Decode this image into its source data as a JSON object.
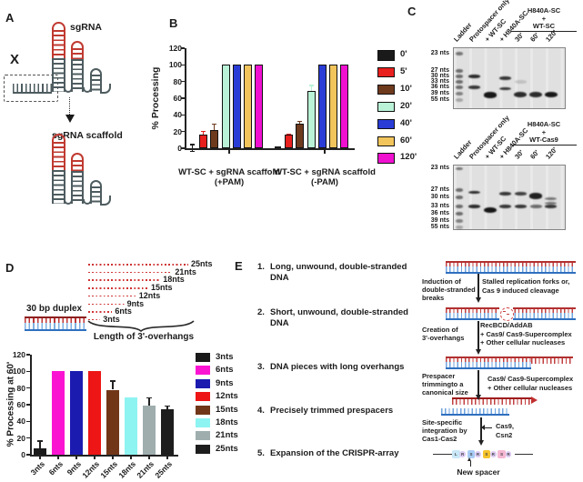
{
  "figure": {
    "panel_labels": {
      "a": "A",
      "b": "B",
      "c": "C",
      "d": "D",
      "e": "E"
    }
  },
  "panel_a": {
    "sgRNA_label": "sgRNA",
    "scaffold_label": "sgRNA scaffold",
    "x_mark": "X"
  },
  "chart_data": [
    {
      "type": "bar",
      "panel": "B",
      "ylabel": "% Processing",
      "ylim": [
        0,
        120
      ],
      "yticks": [
        0,
        20,
        40,
        60,
        80,
        100,
        120
      ],
      "groups": [
        "WT-SC + sgRNA scaffold\n(+PAM)",
        "WT-SC + sgRNA scaffold\n(-PAM)"
      ],
      "series": [
        {
          "name": "0'",
          "color": "#1a1a1a",
          "values": [
            0,
            0
          ],
          "errors": [
            5,
            0
          ]
        },
        {
          "name": "5'",
          "color": "#e8201e",
          "values": [
            16,
            16
          ],
          "errors": [
            5,
            2
          ]
        },
        {
          "name": "10'",
          "color": "#6e3a1e",
          "values": [
            22,
            30
          ],
          "errors": [
            8,
            3
          ]
        },
        {
          "name": "20'",
          "color": "#b9f2d6",
          "values": [
            100,
            69
          ],
          "errors": [
            0,
            7
          ]
        },
        {
          "name": "40'",
          "color": "#2a3cd6",
          "values": [
            100,
            100
          ],
          "errors": [
            0,
            0
          ]
        },
        {
          "name": "60'",
          "color": "#f1c45c",
          "values": [
            100,
            100
          ],
          "errors": [
            0,
            0
          ]
        },
        {
          "name": "120'",
          "color": "#ef10d0",
          "values": [
            100,
            100
          ],
          "errors": [
            0,
            0
          ]
        }
      ],
      "legend_position": "right",
      "grid": false
    },
    {
      "type": "bar",
      "panel": "D",
      "ylabel": "% Processing at 60'",
      "ylim": [
        0,
        120
      ],
      "yticks": [
        0,
        20,
        40,
        60,
        80,
        100,
        120
      ],
      "categories": [
        "3nts",
        "6nts",
        "9nts",
        "12nts",
        "15nts",
        "18nts",
        "21nts",
        "25nts"
      ],
      "values": [
        8,
        100,
        100,
        100,
        78,
        69,
        59,
        55
      ],
      "errors": [
        9,
        0,
        0,
        0,
        11,
        0,
        10,
        4
      ],
      "colors": [
        "#1a1a1a",
        "#fa14d2",
        "#1c1bb0",
        "#ed1515",
        "#713618",
        "#8ef4f2",
        "#9fadad",
        "#1d1d1d"
      ],
      "legend_position": "right",
      "grid": false
    }
  ],
  "panel_c": {
    "gels": [
      {
        "header_lines": [
          "H840A-SC",
          "+",
          "WT-SC"
        ],
        "markers": [
          "55 nts",
          "39 nts",
          "36 nts",
          "33 nts",
          "30 nts",
          "27 nts",
          "23 nts"
        ],
        "lanes": [
          {
            "label": "Ladder",
            "bands": [
              {
                "nts": 55,
                "i": 0.5
              },
              {
                "nts": 39,
                "i": 0.55
              },
              {
                "nts": 36,
                "i": 0.55
              },
              {
                "nts": 33,
                "i": 0.55
              },
              {
                "nts": 30,
                "i": 0.55
              },
              {
                "nts": 27,
                "i": 0.45
              },
              {
                "nts": 23,
                "i": 0.28
              }
            ]
          },
          {
            "label": "Protospacer only",
            "bands": [
              {
                "nts": 36,
                "i": 0.85
              },
              {
                "nts": 30,
                "i": 0.8
              }
            ]
          },
          {
            "label": "+ WT-SC",
            "bands": [
              {
                "nts": 26,
                "i": 0.95,
                "big": true
              }
            ]
          },
          {
            "label": "+ H840A-SC",
            "bands": [
              {
                "nts": 35,
                "i": 0.8
              },
              {
                "nts": 29.5,
                "i": 0.8
              }
            ]
          },
          {
            "label": "30'",
            "bands": [
              {
                "nts": 33,
                "i": 0.15
              },
              {
                "nts": 26.5,
                "i": 0.85,
                "big": true
              }
            ]
          },
          {
            "label": "60'",
            "bands": [
              {
                "nts": 26.5,
                "i": 0.85,
                "big": true
              }
            ]
          },
          {
            "label": "120'",
            "bands": [
              {
                "nts": 26.5,
                "i": 0.95,
                "big": true
              }
            ]
          }
        ]
      },
      {
        "header_lines": [
          "H840A-SC",
          "+",
          "WT-Cas9"
        ],
        "markers": [
          "55 nts",
          "39 nts",
          "36 nts",
          "33 nts",
          "30 nts",
          "27 nts",
          "23 nts"
        ],
        "lanes": [
          {
            "label": "Ladder",
            "bands": [
              {
                "nts": 55,
                "i": 0.5
              },
              {
                "nts": 39,
                "i": 0.55
              },
              {
                "nts": 36,
                "i": 0.55
              },
              {
                "nts": 33,
                "i": 0.55
              },
              {
                "nts": 30,
                "i": 0.55
              },
              {
                "nts": 27,
                "i": 0.45
              },
              {
                "nts": 23,
                "i": 0.28
              }
            ]
          },
          {
            "label": "Protospacer only",
            "bands": [
              {
                "nts": 38,
                "i": 0.85
              },
              {
                "nts": 33,
                "i": 0.85
              }
            ]
          },
          {
            "label": "+ WT-SC",
            "bands": [
              {
                "nts": 31.5,
                "i": 0.95,
                "big": true
              }
            ]
          },
          {
            "label": "+ H840A-SC",
            "bands": [
              {
                "nts": 37.5,
                "i": 0.8
              },
              {
                "nts": 33,
                "i": 0.8
              }
            ]
          },
          {
            "label": "30'",
            "bands": [
              {
                "nts": 37.5,
                "i": 0.75
              },
              {
                "nts": 33,
                "i": 0.8
              }
            ]
          },
          {
            "label": "60'",
            "bands": [
              {
                "nts": 36.5,
                "i": 0.9,
                "big": true
              },
              {
                "nts": 33,
                "i": 0.55
              }
            ]
          },
          {
            "label": "120'",
            "bands": [
              {
                "nts": 35.5,
                "i": 0.5
              },
              {
                "nts": 34,
                "i": 0.5
              },
              {
                "nts": 33,
                "i": 0.8
              }
            ]
          }
        ]
      }
    ]
  },
  "panel_d": {
    "duplex_label": "30 bp duplex",
    "brace_label": "Length of 3'-overhangs",
    "overhangs": [
      {
        "label": "25nts",
        "nts": 25
      },
      {
        "label": "21nts",
        "nts": 21
      },
      {
        "label": "18nts",
        "nts": 18
      },
      {
        "label": "15nts",
        "nts": 15
      },
      {
        "label": "12nts",
        "nts": 12
      },
      {
        "label": "9nts",
        "nts": 9
      },
      {
        "label": "6nts",
        "nts": 6
      },
      {
        "label": "3nts",
        "nts": 3
      }
    ]
  },
  "panel_e": {
    "steps": [
      "Long, unwound, double-stranded\nDNA",
      "Short, unwound, double-stranded\nDNA",
      "DNA pieces with long overhangs",
      "Precisely trimmed prespacers",
      "Expansion of the CRISPR-array"
    ],
    "flow": [
      {
        "left": "Induction of\ndouble-stranded\nbreaks",
        "right": "Stalled replication forks or,\nCas 9 induced cleavage"
      },
      {
        "left": "Creation of\n3'-overhangs",
        "right": "RecBCD/AddAB\n+ Cas9/ Cas9-Supercomplex\n+ Other cellular nucleases"
      },
      {
        "left": "Prespacer\ntrimmingto a\ncanonical size",
        "right": "Cas9/ Cas9-Supercomplex\n+ Other cellular nucleases"
      },
      {
        "left": "Site-specific\nintegration by\nCas1-Cas2",
        "right": "Cas9,\nCsn2"
      }
    ],
    "array": [
      {
        "t": "L",
        "c": "#c9e8f8",
        "shape": "sq"
      },
      {
        "t": "R",
        "c": "#dccbf2",
        "shape": "ci"
      },
      {
        "t": "S",
        "c": "#a8cdf5",
        "shape": "sq"
      },
      {
        "t": "R",
        "c": "#dccbf2",
        "shape": "ci"
      },
      {
        "t": "S",
        "c": "#f6c42c",
        "shape": "sq"
      },
      {
        "t": "R",
        "c": "#dccbf2",
        "shape": "ci"
      },
      {
        "t": "S",
        "c": "#f6b7d2",
        "shape": "sq"
      },
      {
        "t": "R",
        "c": "#dccbf2",
        "shape": "ci"
      }
    ],
    "new_spacer_label": "New spacer"
  }
}
